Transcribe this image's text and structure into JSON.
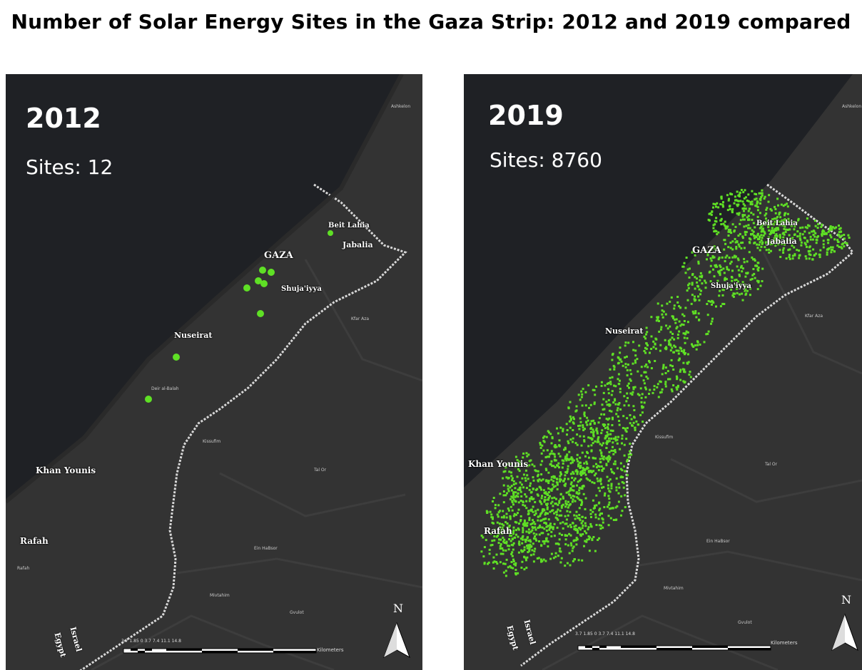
{
  "title": "Number of Solar Energy Sites in the Gaza Strip: 2012 and 2019 compared",
  "colors": {
    "sea": "#1f2125",
    "land": "#333333",
    "border": "#d8d8d8",
    "site": "#5fe025"
  },
  "panels": [
    {
      "year": "2012",
      "sites_label": "Sites: 12",
      "site_count": 12,
      "places": {
        "beit_lahia": "Beit Lahia",
        "jabalia": "Jabalia",
        "gaza": "GAZA",
        "shujaiyya": "Shuja'iyya",
        "nuseirat": "Nuseirat",
        "khan_younis": "Khan Younis",
        "rafah": "Rafah"
      },
      "minor": {
        "ashkelon": "Ashkelon",
        "kfar_aza": "Kfar Aza",
        "kissufim": "Kissufim",
        "tal_or": "Tal Or",
        "ein_habsor": "Ein HaBsor",
        "mivtahim": "Mivtahim",
        "deir_balah": "Deir al-Balah",
        "rafah_small": "Rafah",
        "gvulot": "Gvulot"
      },
      "countries": {
        "egypt": "Egypt",
        "israel": "Israel"
      },
      "north": "N",
      "scale_ticks": "3.7  1.85  0       3.7        7.4        11.1       14.8",
      "scale_unit": "Kilometers"
    },
    {
      "year": "2019",
      "sites_label": "Sites: 8760",
      "site_count": 8760,
      "places": {
        "beit_lahia": "Beit Lahia",
        "jabalia": "Jabalia",
        "gaza": "GAZA",
        "shujaiyya": "Shuja'iyya",
        "nuseirat": "Nuseirat",
        "khan_younis": "Khan Younis",
        "rafah": "Rafah"
      },
      "minor": {
        "ashkelon": "Ashkelon",
        "kfar_aza": "Kfar Aza",
        "kissufim": "Kissufim",
        "tal_or": "Tal Or",
        "ein_habsor": "Ein HaBsor",
        "mivtahim": "Mivtahim",
        "gvulot": "Gvulot"
      },
      "countries": {
        "egypt": "Egypt",
        "israel": "Israel"
      },
      "north": "N",
      "scale_ticks": "3.7  1.85  0       3.7        7.4        11.1       14.8",
      "scale_unit": "Kilometers"
    }
  ]
}
